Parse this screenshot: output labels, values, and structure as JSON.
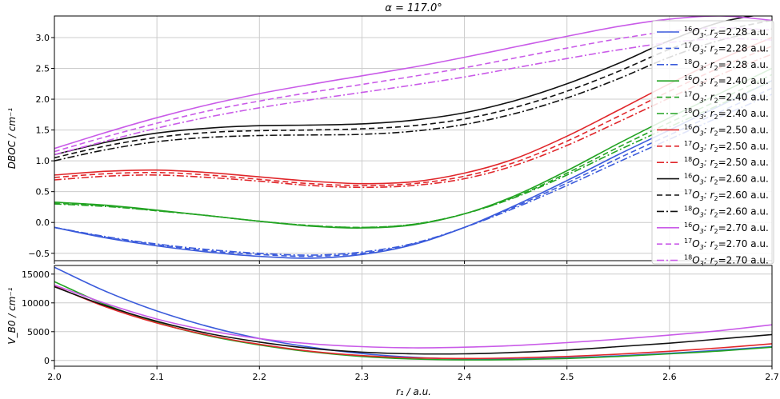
{
  "colors": {
    "blue": "#3b5bdb",
    "green": "#22a322",
    "red": "#e0262a",
    "black": "#111111",
    "magenta": "#c95be8",
    "grid": "#cccccc"
  },
  "chart_data": [
    {
      "type": "line",
      "title": "α = 117.0°",
      "xlabel": "",
      "ylabel": "DBOC / cm⁻¹",
      "xlim": [
        2.0,
        2.7
      ],
      "ylim": [
        -0.62,
        3.35
      ],
      "xticks": [
        "2.0",
        "2.1",
        "2.2",
        "2.3",
        "2.4",
        "2.5",
        "2.6",
        "2.7"
      ],
      "yticks": [
        "−0.5",
        "0.0",
        "0.5",
        "1.0",
        "1.5",
        "2.0",
        "2.5",
        "3.0"
      ],
      "grid": true,
      "legend_position": "right",
      "x": [
        2.0,
        2.05,
        2.1,
        2.15,
        2.2,
        2.25,
        2.3,
        2.35,
        2.4,
        2.45,
        2.5,
        2.55,
        2.6,
        2.65,
        2.7
      ],
      "series": [
        {
          "iso": "16",
          "r2": "2.28",
          "color": "blue",
          "dash": "solid",
          "values": [
            -0.08,
            -0.25,
            -0.38,
            -0.48,
            -0.55,
            -0.58,
            -0.52,
            -0.36,
            -0.08,
            0.28,
            0.68,
            1.1,
            1.5,
            1.9,
            2.3
          ]
        },
        {
          "iso": "17",
          "r2": "2.28",
          "color": "blue",
          "dash": "dashed",
          "values": [
            -0.08,
            -0.24,
            -0.36,
            -0.46,
            -0.52,
            -0.55,
            -0.5,
            -0.35,
            -0.08,
            0.26,
            0.64,
            1.04,
            1.42,
            1.8,
            2.18
          ]
        },
        {
          "iso": "18",
          "r2": "2.28",
          "color": "blue",
          "dash": "dashdot",
          "values": [
            -0.08,
            -0.23,
            -0.35,
            -0.44,
            -0.5,
            -0.53,
            -0.48,
            -0.34,
            -0.08,
            0.24,
            0.6,
            0.98,
            1.35,
            1.72,
            2.08
          ]
        },
        {
          "iso": "16",
          "r2": "2.40",
          "color": "green",
          "dash": "solid",
          "values": [
            0.33,
            0.28,
            0.2,
            0.11,
            0.02,
            -0.06,
            -0.09,
            -0.04,
            0.14,
            0.44,
            0.84,
            1.28,
            1.7,
            2.1,
            2.5
          ]
        },
        {
          "iso": "17",
          "r2": "2.40",
          "color": "green",
          "dash": "dashed",
          "values": [
            0.31,
            0.27,
            0.19,
            0.11,
            0.02,
            -0.05,
            -0.08,
            -0.03,
            0.14,
            0.42,
            0.8,
            1.22,
            1.62,
            2.0,
            2.4
          ]
        },
        {
          "iso": "18",
          "r2": "2.40",
          "color": "green",
          "dash": "dashdot",
          "values": [
            0.3,
            0.26,
            0.19,
            0.11,
            0.02,
            -0.05,
            -0.08,
            -0.03,
            0.14,
            0.41,
            0.77,
            1.17,
            1.55,
            1.92,
            2.3
          ]
        },
        {
          "iso": "16",
          "r2": "2.50",
          "color": "red",
          "dash": "solid",
          "values": [
            0.77,
            0.83,
            0.85,
            0.81,
            0.74,
            0.67,
            0.63,
            0.66,
            0.8,
            1.04,
            1.4,
            1.82,
            2.25,
            2.65,
            3.0
          ]
        },
        {
          "iso": "17",
          "r2": "2.50",
          "color": "red",
          "dash": "dashed",
          "values": [
            0.73,
            0.79,
            0.81,
            0.77,
            0.7,
            0.63,
            0.6,
            0.63,
            0.75,
            0.98,
            1.32,
            1.72,
            2.13,
            2.52,
            2.86
          ]
        },
        {
          "iso": "18",
          "r2": "2.50",
          "color": "red",
          "dash": "dashdot",
          "values": [
            0.69,
            0.75,
            0.77,
            0.73,
            0.67,
            0.6,
            0.57,
            0.6,
            0.71,
            0.93,
            1.25,
            1.63,
            2.02,
            2.4,
            2.73
          ]
        },
        {
          "iso": "16",
          "r2": "2.60",
          "color": "black",
          "dash": "solid",
          "values": [
            1.1,
            1.3,
            1.45,
            1.53,
            1.57,
            1.58,
            1.6,
            1.66,
            1.78,
            1.98,
            2.25,
            2.58,
            2.95,
            3.25,
            3.4
          ]
        },
        {
          "iso": "17",
          "r2": "2.60",
          "color": "black",
          "dash": "dashed",
          "values": [
            1.05,
            1.24,
            1.38,
            1.46,
            1.49,
            1.5,
            1.52,
            1.57,
            1.68,
            1.87,
            2.13,
            2.45,
            2.81,
            3.1,
            3.28
          ]
        },
        {
          "iso": "18",
          "r2": "2.60",
          "color": "black",
          "dash": "dashdot",
          "values": [
            1.0,
            1.18,
            1.31,
            1.38,
            1.41,
            1.42,
            1.43,
            1.48,
            1.59,
            1.77,
            2.02,
            2.33,
            2.68,
            2.96,
            3.14
          ]
        },
        {
          "iso": "16",
          "r2": "2.70",
          "color": "magenta",
          "dash": "solid",
          "values": [
            1.2,
            1.46,
            1.7,
            1.91,
            2.09,
            2.24,
            2.38,
            2.52,
            2.68,
            2.85,
            3.02,
            3.18,
            3.3,
            3.35,
            3.28
          ]
        },
        {
          "iso": "17",
          "r2": "2.70",
          "color": "magenta",
          "dash": "dashed",
          "values": [
            1.15,
            1.39,
            1.61,
            1.81,
            1.97,
            2.11,
            2.24,
            2.37,
            2.51,
            2.67,
            2.83,
            2.98,
            3.1,
            3.16,
            3.12
          ]
        },
        {
          "iso": "18",
          "r2": "2.70",
          "color": "magenta",
          "dash": "dashdot",
          "values": [
            1.1,
            1.32,
            1.53,
            1.71,
            1.86,
            1.99,
            2.11,
            2.23,
            2.36,
            2.51,
            2.66,
            2.8,
            2.92,
            2.98,
            2.96
          ]
        }
      ],
      "legend": [
        {
          "series": 0,
          "iso": "16",
          "label": "O",
          "sub": "3",
          "rest": ": r",
          "sub2": "2",
          "tail": "=2.28 a.u."
        },
        {
          "series": 1,
          "iso": "17",
          "label": "O",
          "sub": "3",
          "rest": ": r",
          "sub2": "2",
          "tail": "=2.28 a.u."
        },
        {
          "series": 2,
          "iso": "18",
          "label": "O",
          "sub": "3",
          "rest": ": r",
          "sub2": "2",
          "tail": "=2.28 a.u."
        },
        {
          "series": 3,
          "iso": "16",
          "label": "O",
          "sub": "3",
          "rest": ": r",
          "sub2": "2",
          "tail": "=2.40 a.u."
        },
        {
          "series": 4,
          "iso": "17",
          "label": "O",
          "sub": "3",
          "rest": ": r",
          "sub2": "2",
          "tail": "=2.40 a.u."
        },
        {
          "series": 5,
          "iso": "18",
          "label": "O",
          "sub": "3",
          "rest": ": r",
          "sub2": "2",
          "tail": "=2.40 a.u."
        },
        {
          "series": 6,
          "iso": "16",
          "label": "O",
          "sub": "3",
          "rest": ": r",
          "sub2": "2",
          "tail": "=2.50 a.u."
        },
        {
          "series": 7,
          "iso": "17",
          "label": "O",
          "sub": "3",
          "rest": ": r",
          "sub2": "2",
          "tail": "=2.50 a.u."
        },
        {
          "series": 8,
          "iso": "18",
          "label": "O",
          "sub": "3",
          "rest": ": r",
          "sub2": "2",
          "tail": "=2.50 a.u."
        },
        {
          "series": 9,
          "iso": "16",
          "label": "O",
          "sub": "3",
          "rest": ": r",
          "sub2": "2",
          "tail": "=2.60 a.u."
        },
        {
          "series": 10,
          "iso": "17",
          "label": "O",
          "sub": "3",
          "rest": ": r",
          "sub2": "2",
          "tail": "=2.60 a.u."
        },
        {
          "series": 11,
          "iso": "18",
          "label": "O",
          "sub": "3",
          "rest": ": r",
          "sub2": "2",
          "tail": "=2.60 a.u."
        },
        {
          "series": 12,
          "iso": "16",
          "label": "O",
          "sub": "3",
          "rest": ": r",
          "sub2": "2",
          "tail": "=2.70 a.u."
        },
        {
          "series": 13,
          "iso": "17",
          "label": "O",
          "sub": "3",
          "rest": ": r",
          "sub2": "2",
          "tail": "=2.70 a.u."
        },
        {
          "series": 14,
          "iso": "18",
          "label": "O",
          "sub": "3",
          "rest": ": r",
          "sub2": "2",
          "tail": "=2.70 a.u."
        }
      ]
    },
    {
      "type": "line",
      "title": "",
      "xlabel": "r₁ / a.u.",
      "ylabel": "V_B0 / cm⁻¹",
      "xlim": [
        2.0,
        2.7
      ],
      "ylim": [
        -1000,
        16500
      ],
      "xticks": [
        "2.0",
        "2.1",
        "2.2",
        "2.3",
        "2.4",
        "2.5",
        "2.6",
        "2.7"
      ],
      "yticks": [
        "0",
        "5000",
        "10000",
        "15000"
      ],
      "grid": true,
      "x": [
        2.0,
        2.05,
        2.1,
        2.15,
        2.2,
        2.25,
        2.3,
        2.35,
        2.4,
        2.45,
        2.5,
        2.55,
        2.6,
        2.65,
        2.7
      ],
      "series": [
        {
          "r2": "2.28",
          "color": "blue",
          "values": [
            16200,
            12000,
            8600,
            5900,
            3800,
            2300,
            1200,
            550,
            250,
            250,
            450,
            800,
            1250,
            1800,
            2400
          ]
        },
        {
          "r2": "2.40",
          "color": "green",
          "values": [
            13700,
            9700,
            6600,
            4300,
            2700,
            1500,
            700,
            250,
            100,
            150,
            350,
            700,
            1150,
            1650,
            2300
          ]
        },
        {
          "r2": "2.50",
          "color": "red",
          "values": [
            12900,
            9300,
            6500,
            4400,
            2800,
            1600,
            850,
            450,
            350,
            450,
            700,
            1100,
            1600,
            2200,
            2900
          ]
        },
        {
          "r2": "2.60",
          "color": "black",
          "values": [
            12800,
            9500,
            6800,
            4700,
            3200,
            2100,
            1450,
            1150,
            1150,
            1400,
            1800,
            2400,
            3000,
            3750,
            4500
          ]
        },
        {
          "r2": "2.70",
          "color": "magenta",
          "values": [
            13100,
            9900,
            7200,
            5200,
            3800,
            2900,
            2400,
            2200,
            2300,
            2600,
            3100,
            3700,
            4400,
            5200,
            6200
          ]
        }
      ]
    }
  ]
}
